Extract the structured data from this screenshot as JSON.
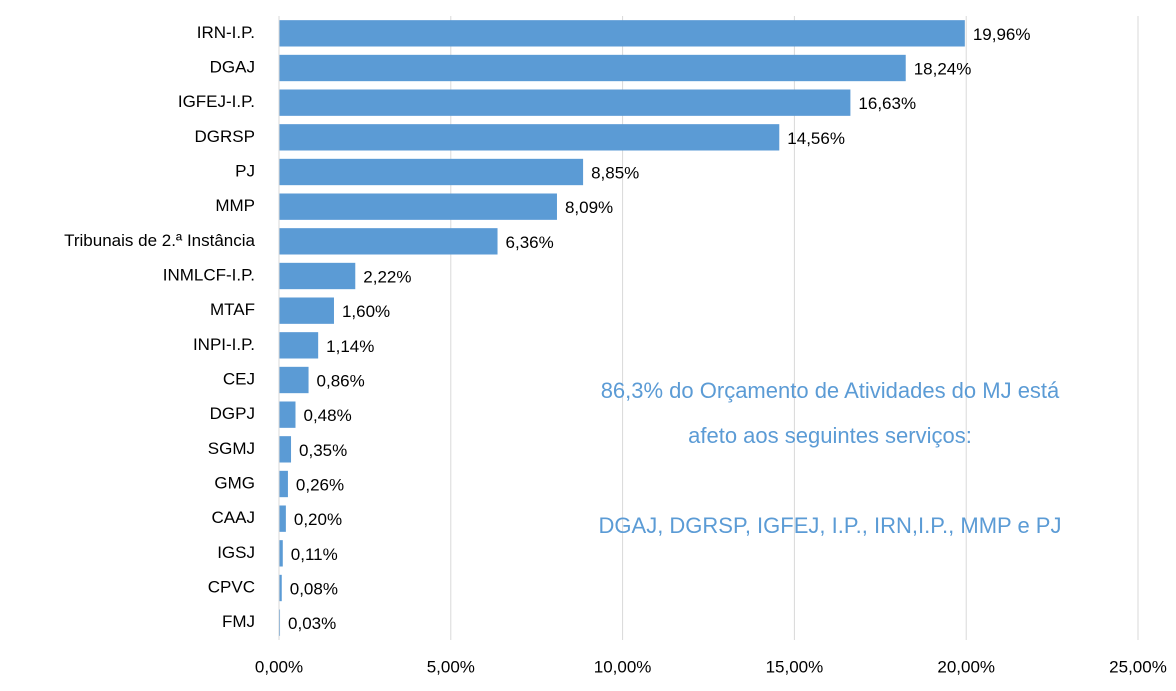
{
  "chart_data": {
    "type": "barh",
    "categories": [
      "IRN-I.P.",
      "DGAJ",
      "IGFEJ-I.P.",
      "DGRSP",
      "PJ",
      "MMP",
      "Tribunais de 2.ª Instância",
      "INMLCF-I.P.",
      "MTAF",
      "INPI-I.P.",
      "CEJ",
      "DGPJ",
      "SGMJ",
      "GMG",
      "CAAJ",
      "IGSJ",
      "CPVC",
      "FMJ"
    ],
    "values": [
      19.96,
      18.24,
      16.63,
      14.56,
      8.85,
      8.09,
      6.36,
      2.22,
      1.6,
      1.14,
      0.86,
      0.48,
      0.35,
      0.26,
      0.2,
      0.11,
      0.08,
      0.03
    ],
    "value_labels": [
      "19,96%",
      "18,24%",
      "16,63%",
      "14,56%",
      "8,85%",
      "8,09%",
      "6,36%",
      "2,22%",
      "1,60%",
      "1,14%",
      "0,86%",
      "0,48%",
      "0,35%",
      "0,26%",
      "0,20%",
      "0,11%",
      "0,08%",
      "0,03%"
    ],
    "color": "#5b9bd5",
    "xlim": [
      0,
      25
    ],
    "xticks": [
      {
        "value": 0,
        "label": "0,00%"
      },
      {
        "value": 5,
        "label": "5,00%"
      },
      {
        "value": 10,
        "label": "10,00%"
      },
      {
        "value": 15,
        "label": "15,00%"
      },
      {
        "value": 20,
        "label": "20,00%"
      },
      {
        "value": 25,
        "label": "25,00%"
      }
    ],
    "grid": true,
    "annotation": [
      "86,3% do Orçamento de Atividades do MJ está",
      "afeto aos seguintes serviços:",
      "DGAJ, DGRSP, IGFEJ, I.P., IRN,I.P., MMP e PJ"
    ]
  }
}
